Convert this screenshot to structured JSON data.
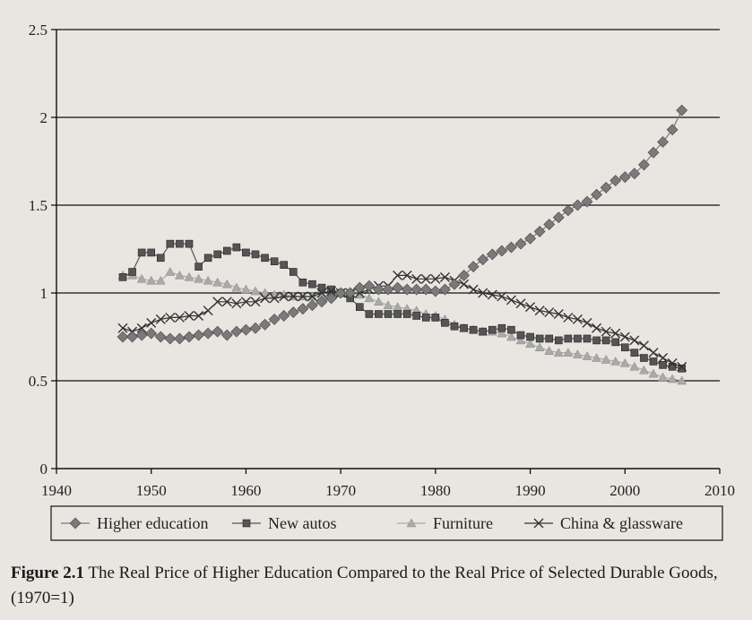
{
  "chart_data": {
    "type": "line",
    "title": "",
    "xlabel": "",
    "ylabel": "",
    "xlim": [
      1940,
      2010
    ],
    "ylim": [
      0,
      2.5
    ],
    "x_ticks": [
      1940,
      1950,
      1960,
      1970,
      1980,
      1990,
      2000,
      2010
    ],
    "y_ticks": [
      0,
      0.5,
      1,
      1.5,
      2,
      2.5
    ],
    "y_tick_labels": [
      "0",
      "0.5",
      "1",
      "1.5",
      "2",
      "2.5"
    ],
    "grid": "horizontal",
    "legend_position": "bottom",
    "x": [
      1947,
      1948,
      1949,
      1950,
      1951,
      1952,
      1953,
      1954,
      1955,
      1956,
      1957,
      1958,
      1959,
      1960,
      1961,
      1962,
      1963,
      1964,
      1965,
      1966,
      1967,
      1968,
      1969,
      1970,
      1971,
      1972,
      1973,
      1974,
      1975,
      1976,
      1977,
      1978,
      1979,
      1980,
      1981,
      1982,
      1983,
      1984,
      1985,
      1986,
      1987,
      1988,
      1989,
      1990,
      1991,
      1992,
      1993,
      1994,
      1995,
      1996,
      1997,
      1998,
      1999,
      2000,
      2001,
      2002,
      2003,
      2004,
      2005,
      2006
    ],
    "series": [
      {
        "name": "Higher education",
        "marker": "diamond",
        "color": "#7a7a7a",
        "values": [
          0.75,
          0.75,
          0.76,
          0.77,
          0.75,
          0.74,
          0.74,
          0.75,
          0.76,
          0.77,
          0.78,
          0.76,
          0.78,
          0.79,
          0.8,
          0.82,
          0.85,
          0.87,
          0.89,
          0.91,
          0.93,
          0.95,
          0.97,
          1.0,
          1.0,
          1.03,
          1.04,
          1.02,
          1.02,
          1.03,
          1.02,
          1.02,
          1.02,
          1.01,
          1.02,
          1.05,
          1.1,
          1.15,
          1.19,
          1.22,
          1.24,
          1.26,
          1.28,
          1.31,
          1.35,
          1.39,
          1.43,
          1.47,
          1.5,
          1.52,
          1.56,
          1.6,
          1.64,
          1.66,
          1.68,
          1.73,
          1.8,
          1.86,
          1.93,
          2.04
        ]
      },
      {
        "name": "New autos",
        "marker": "square",
        "color": "#555555",
        "values": [
          1.09,
          1.12,
          1.23,
          1.23,
          1.2,
          1.28,
          1.28,
          1.28,
          1.15,
          1.2,
          1.22,
          1.24,
          1.26,
          1.23,
          1.22,
          1.2,
          1.18,
          1.16,
          1.12,
          1.06,
          1.05,
          1.03,
          1.02,
          1.0,
          0.97,
          0.92,
          0.88,
          0.88,
          0.88,
          0.88,
          0.88,
          0.87,
          0.86,
          0.86,
          0.83,
          0.81,
          0.8,
          0.79,
          0.78,
          0.79,
          0.8,
          0.79,
          0.76,
          0.75,
          0.74,
          0.74,
          0.73,
          0.74,
          0.74,
          0.74,
          0.73,
          0.73,
          0.72,
          0.69,
          0.66,
          0.63,
          0.61,
          0.59,
          0.58,
          0.57
        ]
      },
      {
        "name": "Furniture",
        "marker": "triangle",
        "color": "#aaaaaa",
        "values": [
          1.1,
          1.1,
          1.08,
          1.07,
          1.07,
          1.12,
          1.1,
          1.09,
          1.08,
          1.07,
          1.06,
          1.05,
          1.03,
          1.02,
          1.01,
          1.0,
          0.99,
          0.99,
          0.98,
          0.98,
          0.98,
          0.98,
          0.99,
          1.0,
          1.0,
          0.99,
          0.97,
          0.95,
          0.93,
          0.92,
          0.91,
          0.9,
          0.88,
          0.87,
          0.85,
          0.82,
          0.8,
          0.79,
          0.78,
          0.78,
          0.77,
          0.75,
          0.73,
          0.71,
          0.69,
          0.67,
          0.66,
          0.66,
          0.65,
          0.64,
          0.63,
          0.62,
          0.61,
          0.6,
          0.58,
          0.56,
          0.54,
          0.52,
          0.51,
          0.5
        ]
      },
      {
        "name": "China & glassware",
        "marker": "x",
        "color": "#333333",
        "values": [
          0.8,
          0.78,
          0.8,
          0.83,
          0.85,
          0.86,
          0.86,
          0.87,
          0.87,
          0.9,
          0.95,
          0.95,
          0.94,
          0.95,
          0.95,
          0.97,
          0.97,
          0.98,
          0.98,
          0.98,
          0.98,
          1.0,
          1.01,
          1.0,
          1.0,
          1.0,
          1.02,
          1.04,
          1.04,
          1.1,
          1.1,
          1.08,
          1.08,
          1.08,
          1.09,
          1.07,
          1.05,
          1.02,
          1.0,
          0.99,
          0.98,
          0.96,
          0.94,
          0.92,
          0.9,
          0.89,
          0.88,
          0.86,
          0.85,
          0.83,
          0.8,
          0.78,
          0.77,
          0.75,
          0.73,
          0.7,
          0.66,
          0.63,
          0.6,
          0.58
        ]
      }
    ]
  },
  "caption": {
    "label": "Figure 2.1",
    "text": " The Real Price of Higher Education Compared to the Real Price of Selected Durable Goods, (1970=1)"
  }
}
